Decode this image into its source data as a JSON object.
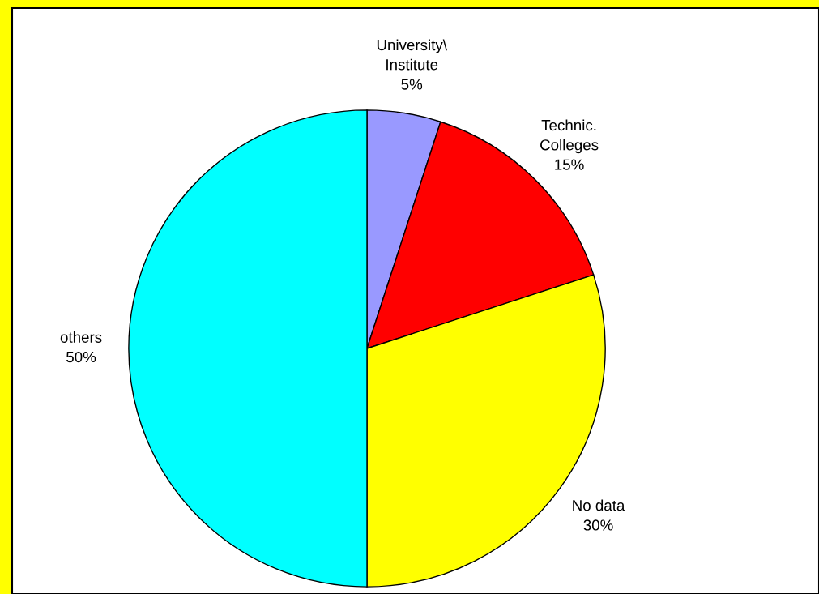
{
  "chart_data": {
    "type": "pie",
    "categories": [
      "University\\\nInstitute",
      "Technic.\nColleges",
      "No data",
      "others"
    ],
    "values": [
      5,
      15,
      30,
      50
    ],
    "colors": [
      "#9999ff",
      "#ff0000",
      "#ffff00",
      "#00ffff"
    ],
    "value_labels": [
      "5%",
      "15%",
      "30%",
      "50%"
    ]
  }
}
